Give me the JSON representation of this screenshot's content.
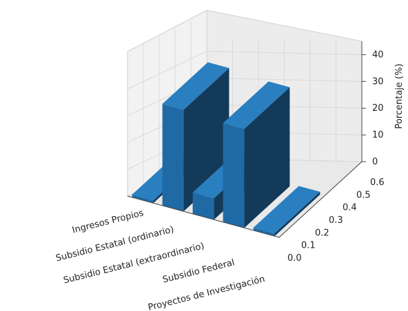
{
  "chart_data": {
    "type": "bar",
    "view": "3d",
    "categories": [
      "Ingresos Propios",
      "Subsidio Estatal (ordinario)",
      "Subsidio Estatal (extraordinario)",
      "Subsidio Federal",
      "Proyectos de Investigación"
    ],
    "values": [
      1,
      38,
      8,
      37,
      1
    ],
    "zlabel": "Porcentaje (%)",
    "z_ticks": [
      0,
      10,
      20,
      30,
      40
    ],
    "zlim": [
      0,
      45
    ],
    "y_ticks": [
      "0.0",
      "0.1",
      "0.2",
      "0.3",
      "0.4",
      "0.5",
      "0.6"
    ],
    "ylim": [
      0,
      0.6
    ],
    "grid": true,
    "colors": {
      "bar_front": "#1f6aa5",
      "bar_side": "#143a5a",
      "bar_top": "#2a7fc0",
      "pane": "#f2f2f2",
      "grid": "#d9d9d9"
    }
  }
}
